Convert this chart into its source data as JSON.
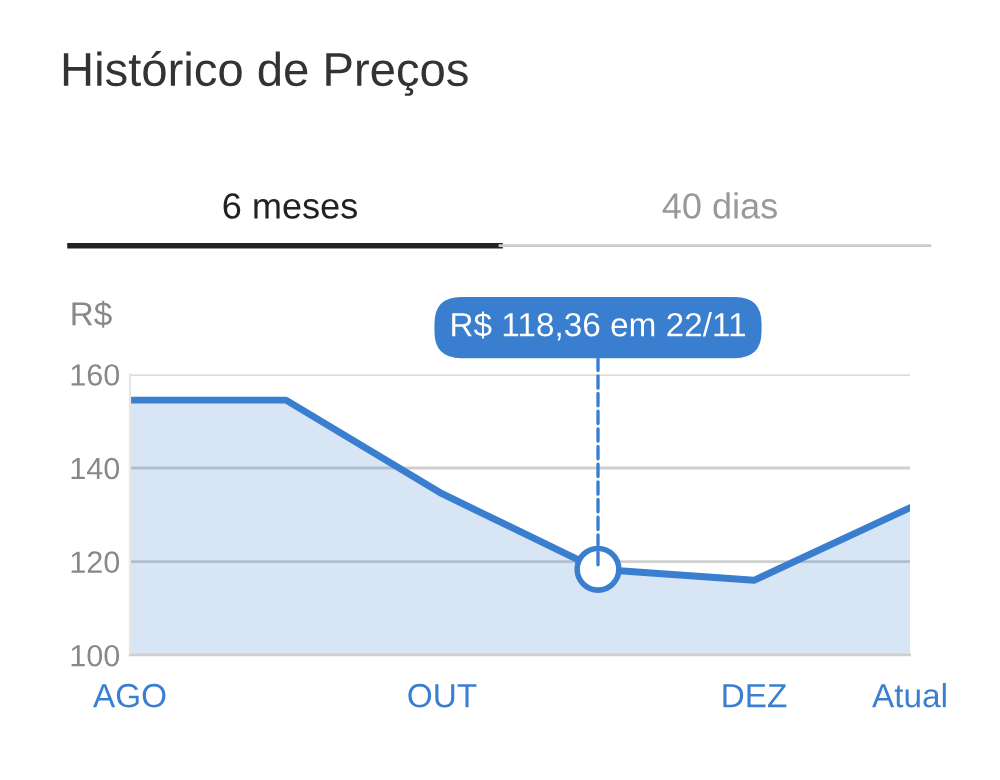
{
  "chart_data": {
    "type": "area",
    "title": "Histórico de Preços",
    "ylabel": "R$",
    "categories": [
      "AGO",
      null,
      "OUT",
      null,
      "DEZ",
      "Atual"
    ],
    "series": [
      {
        "color": "#3a7fcf",
        "values": [
          154.5,
          154.5,
          134.5,
          118.36,
          116,
          131.5
        ]
      }
    ],
    "ylim": [
      100,
      160
    ],
    "yticks": [
      100,
      120,
      140,
      160
    ],
    "grid": "y",
    "marker": "none",
    "line_style": "solid",
    "annotations": [
      {
        "text": "R$ 118,36 em 22/11",
        "y": 118.36
      },
      "6 meses",
      "40 dias"
    ]
  }
}
